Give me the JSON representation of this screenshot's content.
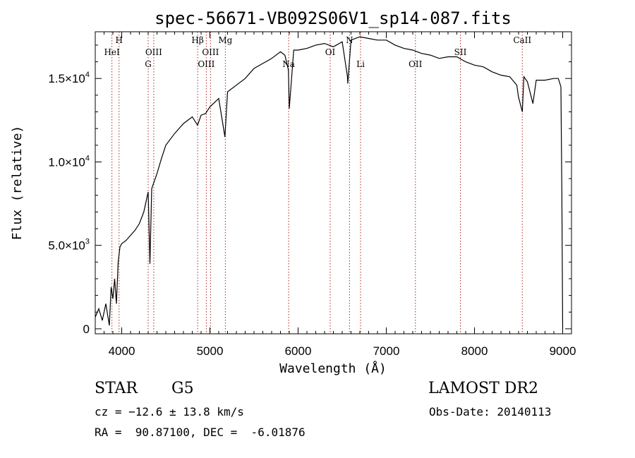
{
  "chart_data": {
    "type": "line",
    "title": "spec-56671-VB092S06V1_sp14-087.fits",
    "xlabel": "Wavelength (Å)",
    "ylabel": "Flux (relative)",
    "xlim": [
      3700,
      9100
    ],
    "ylim": [
      -300,
      17800
    ],
    "xticks": [
      4000,
      5000,
      6000,
      7000,
      8000,
      9000
    ],
    "xtick_labels": [
      "4000",
      "5000",
      "6000",
      "7000",
      "8000",
      "9000"
    ],
    "yticks": [
      0,
      5000,
      10000,
      15000
    ],
    "ytick_labels": [
      "0",
      "5.0×10",
      "1.0×10",
      "1.5×10"
    ],
    "ytick_exponents": [
      "",
      "3",
      "4",
      "4"
    ],
    "grid": false,
    "series": [
      {
        "x": [
          3700,
          3740,
          3780,
          3820,
          3860,
          3880,
          3900,
          3920,
          3940,
          3960,
          3980,
          4000,
          4050,
          4100,
          4150,
          4200,
          4250,
          4300,
          4320,
          4340,
          4400,
          4450,
          4500,
          4600,
          4700,
          4800,
          4860,
          4900,
          4950,
          5000,
          5100,
          5170,
          5200,
          5300,
          5400,
          5500,
          5600,
          5700,
          5800,
          5850,
          5890,
          5900,
          5950,
          6000,
          6100,
          6200,
          6300,
          6400,
          6500,
          6560,
          6563,
          6600,
          6700,
          6800,
          6900,
          7000,
          7100,
          7200,
          7300,
          7400,
          7500,
          7600,
          7700,
          7800,
          7900,
          8000,
          8100,
          8200,
          8300,
          8400,
          8480,
          8498,
          8542,
          8560,
          8600,
          8662,
          8700,
          8800,
          8900,
          8950,
          8980,
          8990,
          9000
        ],
        "y": [
          700,
          1200,
          500,
          1500,
          200,
          2500,
          1800,
          3000,
          1500,
          4000,
          4900,
          5100,
          5300,
          5600,
          5900,
          6300,
          7000,
          8200,
          3900,
          8400,
          9300,
          10200,
          11000,
          11700,
          12300,
          12700,
          12200,
          12800,
          12900,
          13300,
          13800,
          11500,
          14200,
          14600,
          15000,
          15600,
          15900,
          16200,
          16600,
          16400,
          15500,
          13200,
          16700,
          16700,
          16800,
          17000,
          17100,
          16900,
          17200,
          15100,
          14700,
          17300,
          17500,
          17400,
          17300,
          17300,
          17000,
          16800,
          16700,
          16500,
          16400,
          16200,
          16300,
          16300,
          16000,
          15800,
          15700,
          15400,
          15200,
          15100,
          14600,
          13900,
          13000,
          15100,
          14800,
          13500,
          14900,
          14900,
          15000,
          15000,
          14500,
          8200,
          0
        ]
      }
    ],
    "lines": [
      {
        "label": "HeI",
        "wavelength": 3889,
        "row": 2
      },
      {
        "label": "H",
        "wavelength": 3970,
        "row": 1
      },
      {
        "label": "G",
        "wavelength": 4300,
        "row": 3
      },
      {
        "label": "OIII",
        "wavelength": 4363,
        "row": 2
      },
      {
        "label": "Hβ",
        "wavelength": 4861,
        "row": 1
      },
      {
        "label": "OIII",
        "wavelength": 4959,
        "row": 3
      },
      {
        "label": "OIII",
        "wavelength": 5007,
        "row": 2
      },
      {
        "label": "Mg",
        "wavelength": 5175,
        "row": 1
      },
      {
        "label": "Na",
        "wavelength": 5893,
        "row": 3
      },
      {
        "label": "OI",
        "wavelength": 6364,
        "row": 2
      },
      {
        "label": "N",
        "wavelength": 6583,
        "row": 1
      },
      {
        "label": "Li",
        "wavelength": 6708,
        "row": 3
      },
      {
        "label": "OII",
        "wavelength": 7330,
        "row": 3
      },
      {
        "label": "SII",
        "wavelength": 7840,
        "row": 2
      },
      {
        "label": "CaII",
        "wavelength": 8542,
        "row": 1
      }
    ]
  },
  "info": {
    "class_label": "STAR",
    "subclass": "G5",
    "survey": "LAMOST DR2",
    "cz": "cz = −12.6 ± 13.8 km/s",
    "obs_date": "Obs-Date: 20140113",
    "coords": "RA =  90.87100, DEC =  -6.01876"
  },
  "colors": {
    "spectrum": "#000000",
    "line_marker": "#b22222",
    "axes": "#000000"
  }
}
